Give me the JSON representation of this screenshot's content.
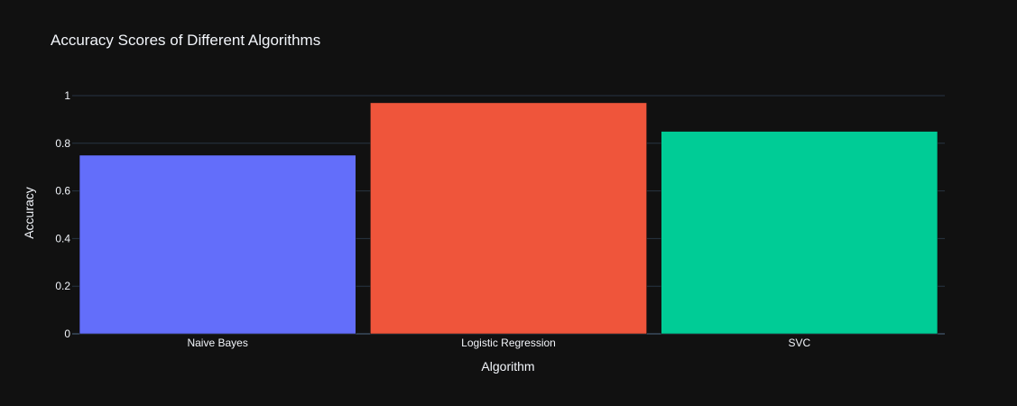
{
  "chart_data": {
    "type": "bar",
    "title": "Accuracy Scores of Different Algorithms",
    "xlabel": "Algorithm",
    "ylabel": "Accuracy",
    "categories": [
      "Naive Bayes",
      "Logistic Regression",
      "SVC"
    ],
    "values": [
      0.75,
      0.97,
      0.85
    ],
    "colors": [
      "#636efa",
      "#EF553B",
      "#00cc96"
    ],
    "ylim": [
      0,
      1
    ],
    "yticks": [
      0,
      0.2,
      0.4,
      0.6,
      0.8,
      1
    ],
    "ytick_labels": [
      "0",
      "0.2",
      "0.4",
      "0.6",
      "0.8",
      "1"
    ],
    "grid": true,
    "legend": false
  },
  "theme": {
    "background": "#111111",
    "text": "#f2f5fa",
    "grid": "#283442",
    "zeroline": "#506784"
  }
}
